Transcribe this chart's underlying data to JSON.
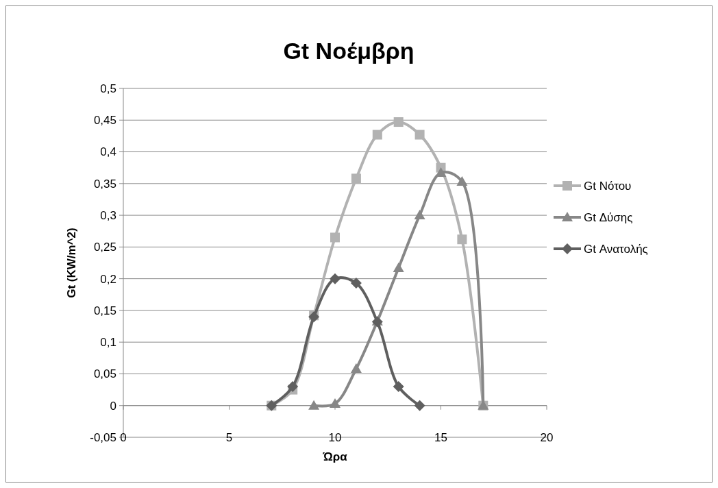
{
  "chart_data": {
    "type": "line",
    "title": "Gt Νοέμβρη",
    "xlabel": "Ώρα",
    "ylabel": "Gt (KW/m^2)",
    "xlim": [
      0,
      20
    ],
    "xticks": [
      0,
      5,
      10,
      15,
      20
    ],
    "ylim": [
      -0.05,
      0.5
    ],
    "yticks": [
      {
        "value": -0.05,
        "label": "-0,05"
      },
      0,
      {
        "value": 0.05,
        "label": "0,05"
      },
      {
        "value": 0.1,
        "label": "0,1"
      },
      {
        "value": 0.15,
        "label": "0,15"
      },
      {
        "value": 0.2,
        "label": "0,2"
      },
      {
        "value": 0.25,
        "label": "0,25"
      },
      {
        "value": 0.3,
        "label": "0,3"
      },
      {
        "value": 0.35,
        "label": "0,35"
      },
      {
        "value": 0.4,
        "label": "0,4"
      },
      {
        "value": 0.45,
        "label": "0,45"
      },
      {
        "value": 0.5,
        "label": "0,5"
      }
    ],
    "grid": "y",
    "legend": "right",
    "line_style": "solid",
    "series": [
      {
        "name": "Gt Νότου",
        "color": "#b2b2b2",
        "marker": "square",
        "x": [
          7,
          8,
          9,
          10,
          11,
          12,
          13,
          14,
          15,
          16,
          17
        ],
        "values": [
          0,
          0.025,
          0.142,
          0.265,
          0.358,
          0.427,
          0.447,
          0.427,
          0.375,
          0.262,
          0
        ]
      },
      {
        "name": "Gt Δύσης",
        "color": "#878787",
        "marker": "triangle",
        "x": [
          9,
          10,
          11,
          12,
          13,
          14,
          15,
          16,
          17
        ],
        "values": [
          0,
          0.003,
          0.058,
          0.133,
          0.217,
          0.3,
          0.367,
          0.353,
          0
        ]
      },
      {
        "name": "Gt Ανατολής",
        "color": "#5f5f5f",
        "marker": "diamond",
        "x": [
          7,
          8,
          9,
          10,
          11,
          12,
          13,
          14
        ],
        "values": [
          0,
          0.03,
          0.14,
          0.2,
          0.193,
          0.132,
          0.03,
          0
        ]
      }
    ]
  }
}
